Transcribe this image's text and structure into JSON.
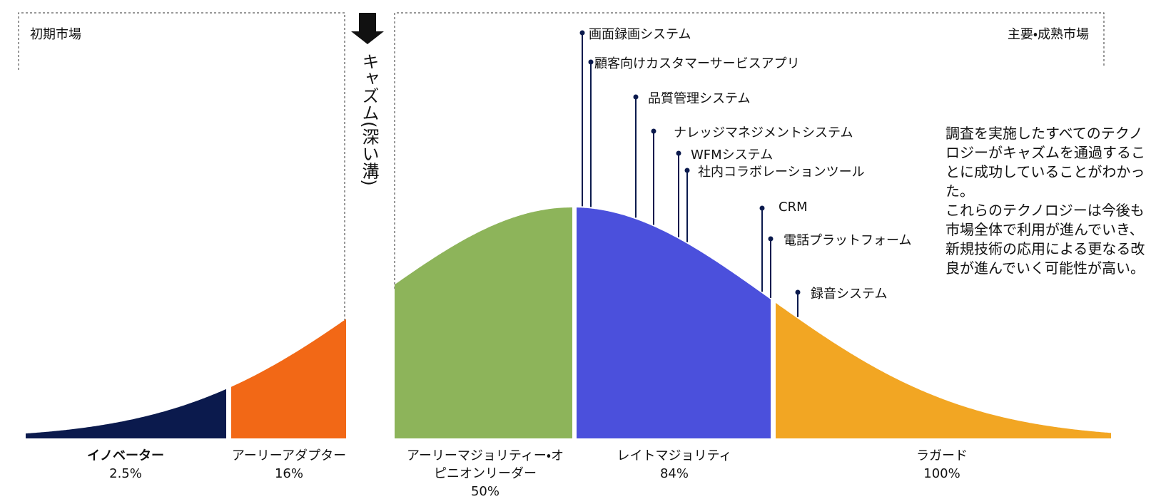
{
  "regions": {
    "early_market": "初期市場",
    "main_market": "主要・成熟市場"
  },
  "chasm": {
    "label": "キャズム(深い溝)"
  },
  "segments": [
    {
      "name": "イノベーター",
      "share": "2.5%"
    },
    {
      "name": "アーリーアダプター",
      "share": "16%"
    },
    {
      "name": "アーリーマジョリティー・オピニオンリーダー",
      "share": "50%"
    },
    {
      "name": "レイトマジョリティ",
      "share": "84%"
    },
    {
      "name": "ラガード",
      "share": "100%"
    }
  ],
  "technologies": [
    "画面録画システム",
    "顧客向けカスタマーサービスアプリ",
    "品質管理システム",
    "ナレッジマネジメントシステム",
    "WFMシステム",
    "社内コラボレーションツール",
    "CRM",
    "電話プラットフォーム",
    "録音システム"
  ],
  "note": [
    "調査を実施したすべてのテクノロジーがキャズムを通過することに成功していることがわかった。",
    "これらのテクノロジーは今後も市場全体で利用が進んでいき、新規技術の応用による更なる改良が進んでいく可能性が高い。"
  ]
}
